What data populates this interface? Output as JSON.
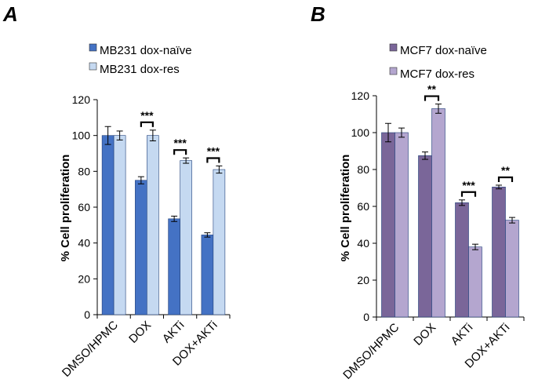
{
  "chart_data": [
    {
      "type": "bar",
      "panel": "A",
      "categories": [
        "DMSO/HPMC",
        "DOX",
        "AKTi",
        "DOX+AKTi"
      ],
      "series": [
        {
          "name": "MB231 dox-naïve",
          "color": "#4472c4",
          "values": [
            100,
            75,
            53.5,
            44.5
          ],
          "errors": [
            5,
            2,
            1.5,
            1.2
          ]
        },
        {
          "name": "MB231 dox-res",
          "color": "#c5d9f1",
          "values": [
            100,
            100,
            86,
            81
          ],
          "errors": [
            2.5,
            3,
            1.5,
            2
          ]
        }
      ],
      "significance": [
        "",
        "***",
        "***",
        "***"
      ],
      "xlabel": "",
      "ylabel": "% Cell proliferation",
      "ylim": [
        0,
        120
      ],
      "yticks": [
        "0",
        "20",
        "40",
        "60",
        "80",
        "100",
        "120"
      ],
      "legend_position": "top"
    },
    {
      "type": "bar",
      "panel": "B",
      "categories": [
        "DMSO/HPMC",
        "DOX",
        "AKTi",
        "DOX+AKTi"
      ],
      "series": [
        {
          "name": "MCF7 dox-naïve",
          "color": "#7a6699",
          "values": [
            100,
            87.5,
            62,
            70.5
          ],
          "errors": [
            5,
            2,
            1.5,
            1
          ]
        },
        {
          "name": "MCF7 dox-res",
          "color": "#b4a6cf",
          "values": [
            100,
            113,
            38,
            52.5
          ],
          "errors": [
            2.5,
            2.5,
            1.5,
            1.5
          ]
        }
      ],
      "significance": [
        "",
        "**",
        "***",
        "**"
      ],
      "xlabel": "",
      "ylabel": "% Cell proliferation",
      "ylim": [
        0,
        120
      ],
      "yticks": [
        "0",
        "20",
        "40",
        "60",
        "80",
        "100",
        "120"
      ],
      "legend_position": "top"
    }
  ]
}
